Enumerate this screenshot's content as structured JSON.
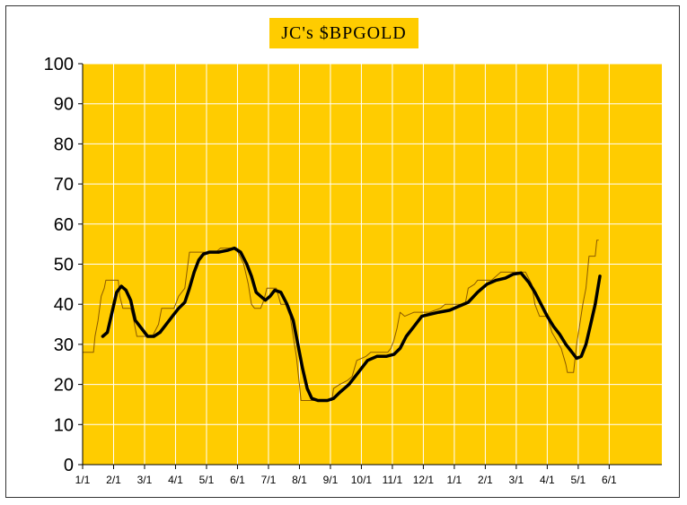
{
  "chart_data": {
    "type": "line",
    "title": "JC's $BPGOLD",
    "xlabel": "",
    "ylabel": "",
    "ylim": [
      0,
      100
    ],
    "yticks": [
      "0",
      "10",
      "20",
      "30",
      "40",
      "50",
      "60",
      "70",
      "80",
      "90",
      "100"
    ],
    "x_domain": [
      0,
      18.7
    ],
    "x_tick_labels": [
      "1/1",
      "2/1",
      "3/1",
      "4/1",
      "5/1",
      "6/1",
      "7/1",
      "8/1",
      "9/1",
      "10/1",
      "11/1",
      "12/1",
      "1/1",
      "2/1",
      "3/1",
      "4/1",
      "5/1",
      "6/1"
    ],
    "grid": true,
    "plot_background": "#FFCC00",
    "grid_color": "#FFFFFF",
    "legend": "none",
    "series": [
      {
        "style": "thin-step",
        "color": "#8B5A00",
        "points": [
          [
            0.0,
            28
          ],
          [
            0.35,
            28
          ],
          [
            0.4,
            32
          ],
          [
            0.5,
            36
          ],
          [
            0.6,
            42
          ],
          [
            0.7,
            44
          ],
          [
            0.75,
            46
          ],
          [
            1.15,
            46
          ],
          [
            1.2,
            42
          ],
          [
            1.3,
            39
          ],
          [
            1.55,
            39
          ],
          [
            1.65,
            36
          ],
          [
            1.75,
            32
          ],
          [
            2.25,
            32
          ],
          [
            2.45,
            35
          ],
          [
            2.55,
            39
          ],
          [
            2.95,
            39
          ],
          [
            3.1,
            42
          ],
          [
            3.3,
            44
          ],
          [
            3.35,
            47
          ],
          [
            3.45,
            53
          ],
          [
            4.3,
            53
          ],
          [
            4.45,
            54
          ],
          [
            4.65,
            54
          ],
          [
            4.95,
            54
          ],
          [
            5.2,
            50
          ],
          [
            5.35,
            45
          ],
          [
            5.45,
            40
          ],
          [
            5.55,
            39
          ],
          [
            5.75,
            39
          ],
          [
            5.85,
            41
          ],
          [
            5.95,
            44
          ],
          [
            6.25,
            44
          ],
          [
            6.4,
            40
          ],
          [
            6.55,
            40
          ],
          [
            6.7,
            37
          ],
          [
            6.8,
            32
          ],
          [
            6.9,
            27
          ],
          [
            7.0,
            20
          ],
          [
            7.05,
            16
          ],
          [
            8.05,
            16
          ],
          [
            8.1,
            19
          ],
          [
            8.3,
            20
          ],
          [
            8.55,
            21
          ],
          [
            8.7,
            22
          ],
          [
            8.85,
            26
          ],
          [
            9.15,
            27
          ],
          [
            9.3,
            28
          ],
          [
            9.85,
            28
          ],
          [
            9.95,
            29
          ],
          [
            10.05,
            31
          ],
          [
            10.15,
            34
          ],
          [
            10.25,
            38
          ],
          [
            10.4,
            37
          ],
          [
            10.7,
            38
          ],
          [
            11.0,
            38
          ],
          [
            11.2,
            38
          ],
          [
            11.55,
            39
          ],
          [
            11.7,
            40
          ],
          [
            12.0,
            40
          ],
          [
            12.35,
            40
          ],
          [
            12.45,
            44
          ],
          [
            12.65,
            45
          ],
          [
            12.75,
            46
          ],
          [
            13.2,
            46
          ],
          [
            13.35,
            47
          ],
          [
            13.5,
            48
          ],
          [
            14.1,
            48
          ],
          [
            14.3,
            48
          ],
          [
            14.5,
            45
          ],
          [
            14.6,
            40
          ],
          [
            14.75,
            37
          ],
          [
            15.0,
            37
          ],
          [
            15.15,
            33
          ],
          [
            15.45,
            29
          ],
          [
            15.6,
            25
          ],
          [
            15.65,
            23
          ],
          [
            15.85,
            23
          ],
          [
            15.95,
            30
          ],
          [
            16.05,
            35
          ],
          [
            16.15,
            40
          ],
          [
            16.25,
            44
          ],
          [
            16.35,
            52
          ],
          [
            16.55,
            52
          ],
          [
            16.6,
            56
          ],
          [
            16.65,
            56
          ]
        ]
      },
      {
        "style": "thick-smooth",
        "color": "#000000",
        "points": [
          [
            0.65,
            32
          ],
          [
            0.8,
            33
          ],
          [
            0.95,
            38
          ],
          [
            1.1,
            43
          ],
          [
            1.25,
            44.5
          ],
          [
            1.4,
            43.5
          ],
          [
            1.55,
            41
          ],
          [
            1.7,
            36
          ],
          [
            1.9,
            34
          ],
          [
            2.1,
            32
          ],
          [
            2.3,
            32
          ],
          [
            2.5,
            33
          ],
          [
            2.7,
            35
          ],
          [
            2.9,
            37
          ],
          [
            3.1,
            39
          ],
          [
            3.3,
            40.5
          ],
          [
            3.45,
            44
          ],
          [
            3.6,
            48
          ],
          [
            3.75,
            51
          ],
          [
            3.9,
            52.5
          ],
          [
            4.1,
            53
          ],
          [
            4.4,
            53
          ],
          [
            4.7,
            53.5
          ],
          [
            4.9,
            54
          ],
          [
            5.1,
            53
          ],
          [
            5.3,
            50
          ],
          [
            5.45,
            47
          ],
          [
            5.6,
            43
          ],
          [
            5.75,
            42
          ],
          [
            5.9,
            41
          ],
          [
            6.05,
            42
          ],
          [
            6.2,
            43.5
          ],
          [
            6.4,
            43
          ],
          [
            6.6,
            40
          ],
          [
            6.8,
            36
          ],
          [
            6.95,
            30
          ],
          [
            7.1,
            24
          ],
          [
            7.25,
            19
          ],
          [
            7.4,
            16.5
          ],
          [
            7.6,
            16
          ],
          [
            7.9,
            16
          ],
          [
            8.1,
            16.5
          ],
          [
            8.3,
            18
          ],
          [
            8.6,
            20
          ],
          [
            8.9,
            23
          ],
          [
            9.2,
            26
          ],
          [
            9.5,
            27
          ],
          [
            9.8,
            27
          ],
          [
            10.05,
            27.5
          ],
          [
            10.25,
            29
          ],
          [
            10.45,
            32
          ],
          [
            10.7,
            34.5
          ],
          [
            10.95,
            37
          ],
          [
            11.2,
            37.5
          ],
          [
            11.5,
            38
          ],
          [
            11.85,
            38.5
          ],
          [
            12.15,
            39.5
          ],
          [
            12.45,
            40.5
          ],
          [
            12.75,
            43
          ],
          [
            13.05,
            45
          ],
          [
            13.35,
            46
          ],
          [
            13.65,
            46.5
          ],
          [
            13.9,
            47.5
          ],
          [
            14.15,
            47.8
          ],
          [
            14.4,
            45.5
          ],
          [
            14.6,
            43
          ],
          [
            14.8,
            40
          ],
          [
            15.0,
            37
          ],
          [
            15.2,
            34.5
          ],
          [
            15.4,
            32.5
          ],
          [
            15.6,
            30
          ],
          [
            15.8,
            28
          ],
          [
            15.95,
            26.5
          ],
          [
            16.1,
            27
          ],
          [
            16.25,
            30
          ],
          [
            16.4,
            35
          ],
          [
            16.55,
            40
          ],
          [
            16.7,
            47
          ]
        ]
      }
    ]
  }
}
